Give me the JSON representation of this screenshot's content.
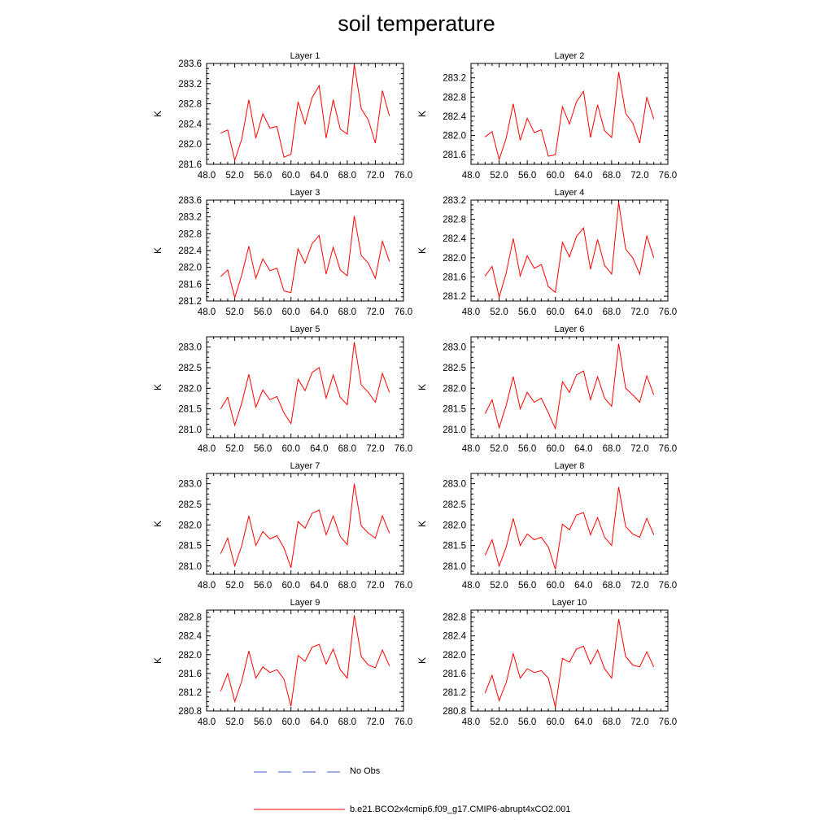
{
  "title": "soil temperature",
  "chart_data": [
    {
      "type": "line",
      "title": "Layer 1",
      "ylabel": "K",
      "xlim": [
        48,
        76
      ],
      "ylim": [
        281.6,
        283.6
      ],
      "xticks": [
        "48.0",
        "52.0",
        "56.0",
        "60.0",
        "64.0",
        "68.0",
        "72.0",
        "76.0"
      ],
      "yticks": [
        "281.6",
        "282.0",
        "282.4",
        "282.8",
        "283.2",
        "283.6"
      ],
      "series": [
        {
          "name": "b.e21.BCO2x4cmip6.f09_g17.CMIP6-abrupt4xCO2.001",
          "color": "#ff0000",
          "x": [
            50,
            51,
            52,
            53,
            54,
            55,
            56,
            57,
            58,
            59,
            60,
            61,
            62,
            63,
            64,
            65,
            66,
            67,
            68,
            69,
            70,
            71,
            72,
            73,
            74
          ],
          "values": [
            282.22,
            282.28,
            281.68,
            282.1,
            282.88,
            282.12,
            282.6,
            282.32,
            282.35,
            281.74,
            281.8,
            282.84,
            282.4,
            282.92,
            283.16,
            282.12,
            282.88,
            282.3,
            282.2,
            283.58,
            282.7,
            282.48,
            282.02,
            283.06,
            282.56
          ]
        }
      ]
    },
    {
      "type": "line",
      "title": "Layer 2",
      "ylabel": "K",
      "xlim": [
        48,
        76
      ],
      "ylim": [
        281.4,
        283.5
      ],
      "xticks": [
        "48.0",
        "52.0",
        "56.0",
        "60.0",
        "64.0",
        "68.0",
        "72.0",
        "76.0"
      ],
      "yticks": [
        "281.6",
        "282.0",
        "282.4",
        "282.8",
        "283.2"
      ],
      "series": [
        {
          "name": "b.e21.BCO2x4cmip6.f09_g17.CMIP6-abrupt4xCO2.001",
          "color": "#ff0000",
          "x": [
            50,
            51,
            52,
            53,
            54,
            55,
            56,
            57,
            58,
            59,
            60,
            61,
            62,
            63,
            64,
            65,
            66,
            67,
            68,
            69,
            70,
            71,
            72,
            73,
            74
          ],
          "values": [
            281.97,
            282.08,
            281.5,
            281.94,
            282.66,
            281.9,
            282.36,
            282.06,
            282.12,
            281.57,
            281.6,
            282.6,
            282.24,
            282.7,
            282.92,
            281.96,
            282.64,
            282.1,
            281.96,
            283.32,
            282.46,
            282.26,
            281.84,
            282.8,
            282.34
          ]
        }
      ]
    },
    {
      "type": "line",
      "title": "Layer 3",
      "ylabel": "K",
      "xlim": [
        48,
        76
      ],
      "ylim": [
        281.2,
        283.6
      ],
      "xticks": [
        "48.0",
        "52.0",
        "56.0",
        "60.0",
        "64.0",
        "68.0",
        "72.0",
        "76.0"
      ],
      "yticks": [
        "281.2",
        "281.6",
        "282.0",
        "282.4",
        "282.8",
        "283.2",
        "283.6"
      ],
      "series": [
        {
          "name": "b.e21.BCO2x4cmip6.f09_g17.CMIP6-abrupt4xCO2.001",
          "color": "#ff0000",
          "x": [
            50,
            51,
            52,
            53,
            54,
            55,
            56,
            57,
            58,
            59,
            60,
            61,
            62,
            63,
            64,
            65,
            66,
            67,
            68,
            69,
            70,
            71,
            72,
            73,
            74
          ],
          "values": [
            281.78,
            281.94,
            281.28,
            281.82,
            282.5,
            281.74,
            282.2,
            281.92,
            281.98,
            281.44,
            281.4,
            282.44,
            282.1,
            282.56,
            282.76,
            281.84,
            282.48,
            281.94,
            281.8,
            283.22,
            282.28,
            282.1,
            281.74,
            282.62,
            282.14
          ]
        }
      ]
    },
    {
      "type": "line",
      "title": "Layer 4",
      "ylabel": "K",
      "xlim": [
        48,
        76
      ],
      "ylim": [
        281.1,
        283.2
      ],
      "xticks": [
        "48.0",
        "52.0",
        "56.0",
        "60.0",
        "64.0",
        "68.0",
        "72.0",
        "76.0"
      ],
      "yticks": [
        "281.2",
        "281.6",
        "282.0",
        "282.4",
        "282.8",
        "283.2"
      ],
      "series": [
        {
          "name": "b.e21.BCO2x4cmip6.f09_g17.CMIP6-abrupt4xCO2.001",
          "color": "#ff0000",
          "x": [
            50,
            51,
            52,
            53,
            54,
            55,
            56,
            57,
            58,
            59,
            60,
            61,
            62,
            63,
            64,
            65,
            66,
            67,
            68,
            69,
            70,
            71,
            72,
            73,
            74
          ],
          "values": [
            281.62,
            281.82,
            281.18,
            281.68,
            282.4,
            281.62,
            282.04,
            281.78,
            281.86,
            281.4,
            281.28,
            282.32,
            282.02,
            282.44,
            282.62,
            281.76,
            282.38,
            281.84,
            281.66,
            283.16,
            282.18,
            282.0,
            281.66,
            282.46,
            282.0
          ]
        }
      ]
    },
    {
      "type": "line",
      "title": "Layer 5",
      "ylabel": "K",
      "xlim": [
        48,
        76
      ],
      "ylim": [
        280.8,
        283.25
      ],
      "xticks": [
        "48.0",
        "52.0",
        "56.0",
        "60.0",
        "64.0",
        "68.0",
        "72.0",
        "76.0"
      ],
      "yticks": [
        "281.0",
        "281.5",
        "282.0",
        "282.5",
        "283.0"
      ],
      "series": [
        {
          "name": "b.e21.BCO2x4cmip6.f09_g17.CMIP6-abrupt4xCO2.001",
          "color": "#ff0000",
          "x": [
            50,
            51,
            52,
            53,
            54,
            55,
            56,
            57,
            58,
            59,
            60,
            61,
            62,
            63,
            64,
            65,
            66,
            67,
            68,
            69,
            70,
            71,
            72,
            73,
            74
          ],
          "values": [
            281.5,
            281.78,
            281.1,
            281.64,
            282.34,
            281.54,
            281.96,
            281.72,
            281.8,
            281.4,
            281.14,
            282.22,
            281.94,
            282.38,
            282.5,
            281.76,
            282.32,
            281.78,
            281.6,
            283.12,
            282.08,
            281.9,
            281.66,
            282.36,
            281.9
          ]
        }
      ]
    },
    {
      "type": "line",
      "title": "Layer 6",
      "ylabel": "K",
      "xlim": [
        48,
        76
      ],
      "ylim": [
        280.8,
        283.25
      ],
      "xticks": [
        "48.0",
        "52.0",
        "56.0",
        "60.0",
        "64.0",
        "68.0",
        "72.0",
        "76.0"
      ],
      "yticks": [
        "281.0",
        "281.5",
        "282.0",
        "282.5",
        "283.0"
      ],
      "series": [
        {
          "name": "b.e21.BCO2x4cmip6.f09_g17.CMIP6-abrupt4xCO2.001",
          "color": "#ff0000",
          "x": [
            50,
            51,
            52,
            53,
            54,
            55,
            56,
            57,
            58,
            59,
            60,
            61,
            62,
            63,
            64,
            65,
            66,
            67,
            68,
            69,
            70,
            71,
            72,
            73,
            74
          ],
          "values": [
            281.38,
            281.72,
            281.04,
            281.58,
            282.28,
            281.5,
            281.9,
            281.66,
            281.76,
            281.4,
            281.02,
            282.16,
            281.9,
            282.32,
            282.42,
            281.72,
            282.28,
            281.76,
            281.56,
            283.08,
            282.0,
            281.84,
            281.66,
            282.3,
            281.84
          ]
        }
      ]
    },
    {
      "type": "line",
      "title": "Layer 7",
      "ylabel": "K",
      "xlim": [
        48,
        76
      ],
      "ylim": [
        280.8,
        283.25
      ],
      "xticks": [
        "48.0",
        "52.0",
        "56.0",
        "60.0",
        "64.0",
        "68.0",
        "72.0",
        "76.0"
      ],
      "yticks": [
        "281.0",
        "281.5",
        "282.0",
        "282.5",
        "283.0"
      ],
      "series": [
        {
          "name": "b.e21.BCO2x4cmip6.f09_g17.CMIP6-abrupt4xCO2.001",
          "color": "#ff0000",
          "x": [
            50,
            51,
            52,
            53,
            54,
            55,
            56,
            57,
            58,
            59,
            60,
            61,
            62,
            63,
            64,
            65,
            66,
            67,
            68,
            69,
            70,
            71,
            72,
            73,
            74
          ],
          "values": [
            281.3,
            281.68,
            281.0,
            281.5,
            282.22,
            281.5,
            281.84,
            281.66,
            281.74,
            281.44,
            280.96,
            282.08,
            281.92,
            282.28,
            282.36,
            281.76,
            282.22,
            281.72,
            281.52,
            283.0,
            281.98,
            281.8,
            281.68,
            282.22,
            281.8
          ]
        }
      ]
    },
    {
      "type": "line",
      "title": "Layer 8",
      "ylabel": "K",
      "xlim": [
        48,
        76
      ],
      "ylim": [
        280.8,
        283.25
      ],
      "xticks": [
        "48.0",
        "52.0",
        "56.0",
        "60.0",
        "64.0",
        "68.0",
        "72.0",
        "76.0"
      ],
      "yticks": [
        "281.0",
        "281.5",
        "282.0",
        "282.5",
        "283.0"
      ],
      "series": [
        {
          "name": "b.e21.BCO2x4cmip6.f09_g17.CMIP6-abrupt4xCO2.001",
          "color": "#ff0000",
          "x": [
            50,
            51,
            52,
            53,
            54,
            55,
            56,
            57,
            58,
            59,
            60,
            61,
            62,
            63,
            64,
            65,
            66,
            67,
            68,
            69,
            70,
            71,
            72,
            73,
            74
          ],
          "values": [
            281.26,
            281.64,
            281.0,
            281.46,
            282.16,
            281.5,
            281.78,
            281.64,
            281.7,
            281.46,
            280.92,
            282.02,
            281.88,
            282.24,
            282.3,
            281.76,
            282.18,
            281.7,
            281.5,
            282.92,
            281.96,
            281.78,
            281.7,
            282.16,
            281.76
          ]
        }
      ]
    },
    {
      "type": "line",
      "title": "Layer 9",
      "ylabel": "K",
      "xlim": [
        48,
        76
      ],
      "ylim": [
        280.8,
        282.95
      ],
      "xticks": [
        "48.0",
        "52.0",
        "56.0",
        "60.0",
        "64.0",
        "68.0",
        "72.0",
        "76.0"
      ],
      "yticks": [
        "280.8",
        "281.2",
        "281.6",
        "282.0",
        "282.4",
        "282.8"
      ],
      "series": [
        {
          "name": "b.e21.BCO2x4cmip6.f09_g17.CMIP6-abrupt4xCO2.001",
          "color": "#ff0000",
          "x": [
            50,
            51,
            52,
            53,
            54,
            55,
            56,
            57,
            58,
            59,
            60,
            61,
            62,
            63,
            64,
            65,
            66,
            67,
            68,
            69,
            70,
            71,
            72,
            73,
            74
          ],
          "values": [
            281.22,
            281.6,
            281.0,
            281.44,
            282.08,
            281.5,
            281.74,
            281.62,
            281.68,
            281.48,
            280.9,
            281.98,
            281.86,
            282.16,
            282.22,
            281.8,
            282.12,
            281.68,
            281.5,
            282.84,
            281.96,
            281.78,
            281.72,
            282.1,
            281.76
          ]
        }
      ]
    },
    {
      "type": "line",
      "title": "Layer 10",
      "ylabel": "K",
      "xlim": [
        48,
        76
      ],
      "ylim": [
        280.8,
        282.95
      ],
      "xticks": [
        "48.0",
        "52.0",
        "56.0",
        "60.0",
        "64.0",
        "68.0",
        "72.0",
        "76.0"
      ],
      "yticks": [
        "280.8",
        "281.2",
        "281.6",
        "282.0",
        "282.4",
        "282.8"
      ],
      "series": [
        {
          "name": "b.e21.BCO2x4cmip6.f09_g17.CMIP6-abrupt4xCO2.001",
          "color": "#ff0000",
          "x": [
            50,
            51,
            52,
            53,
            54,
            55,
            56,
            57,
            58,
            59,
            60,
            61,
            62,
            63,
            64,
            65,
            66,
            67,
            68,
            69,
            70,
            71,
            72,
            73,
            74
          ],
          "values": [
            281.18,
            281.56,
            281.02,
            281.4,
            282.02,
            281.5,
            281.7,
            281.62,
            281.66,
            281.5,
            280.88,
            281.92,
            281.84,
            282.12,
            282.18,
            281.8,
            282.1,
            281.7,
            281.5,
            282.76,
            281.96,
            281.78,
            281.74,
            282.06,
            281.74
          ]
        }
      ]
    }
  ],
  "legend": {
    "items": [
      {
        "label": "No Obs",
        "color": "#3a5bd6",
        "style": "dashed"
      },
      {
        "label": "b.e21.BCO2x4cmip6.f09_g17.CMIP6-abrupt4xCO2.001",
        "color": "#ff0000",
        "style": "solid"
      }
    ]
  }
}
